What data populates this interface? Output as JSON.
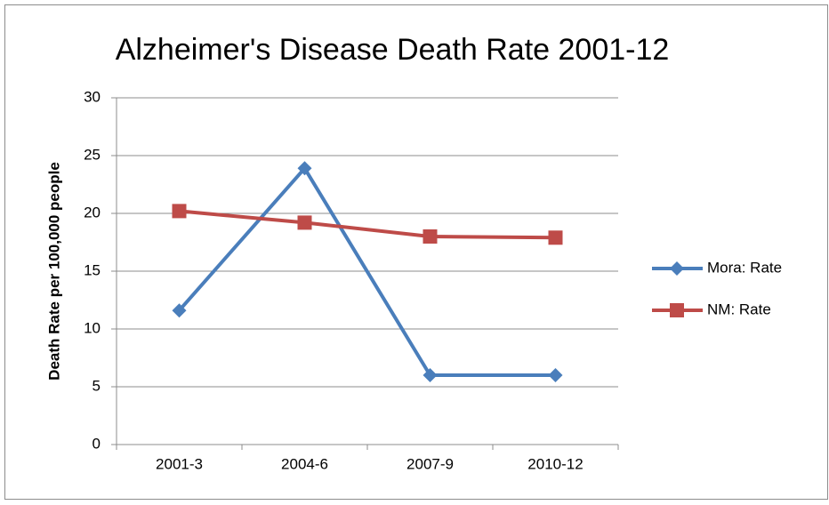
{
  "chart_data": {
    "type": "line",
    "title": "Alzheimer's Disease Death Rate 2001-12",
    "y_label": "Death Rate per 100,000 people",
    "categories": [
      "2001-3",
      "2004-6",
      "2007-9",
      "2010-12"
    ],
    "series": [
      {
        "name": "Mora: Rate",
        "color": "#4a7ebb",
        "marker": "diamond",
        "values": [
          11.6,
          23.9,
          6.0,
          6.0
        ]
      },
      {
        "name": "NM: Rate",
        "color": "#be4b48",
        "marker": "square",
        "values": [
          20.2,
          19.2,
          18.0,
          17.9
        ]
      }
    ],
    "ylim": [
      0,
      30
    ],
    "yticks": [
      0,
      5,
      10,
      15,
      20,
      25,
      30
    ],
    "grid": true,
    "legend": "right"
  }
}
